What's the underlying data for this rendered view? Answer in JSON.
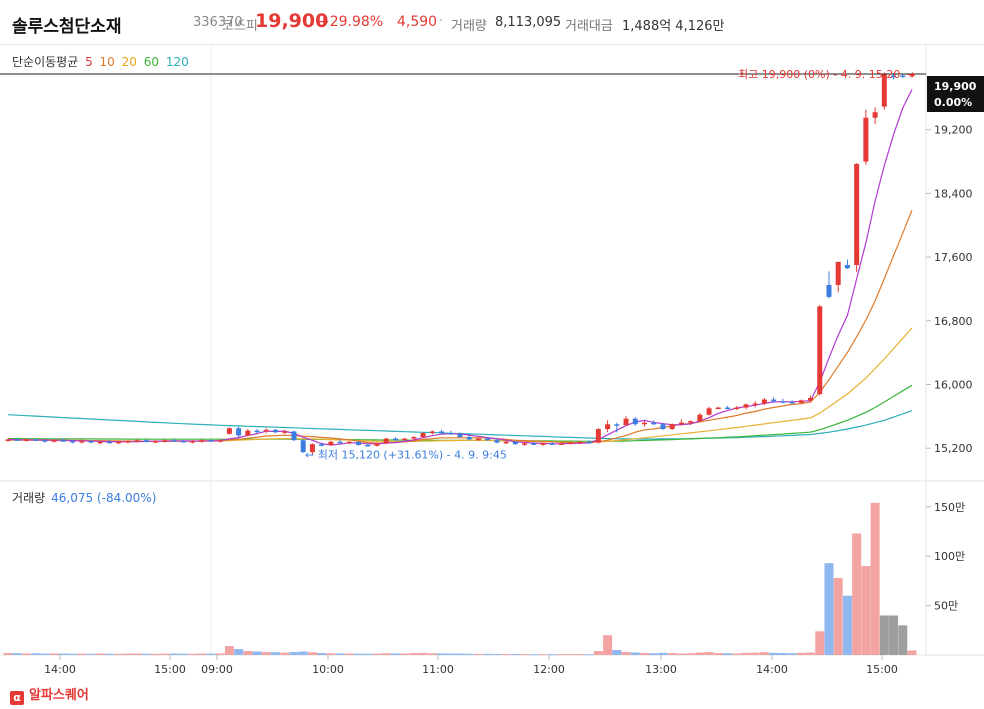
{
  "header": {
    "name": "솔루스첨단소재",
    "code": "336370",
    "market": "코스피",
    "price": "19,900",
    "change_pct": "+29.98%",
    "change": "4,590",
    "volume_label": "거래량",
    "volume": "8,113,095",
    "amount_label": "거래대금",
    "amount": "1,488억 4,126만"
  },
  "legend": {
    "title": "단순이동평균",
    "periods": [
      "5",
      "10",
      "20",
      "60",
      "120"
    ],
    "colors": [
      "#d63a3a",
      "#e07a2a",
      "#e8a917",
      "#3cb53c",
      "#2bb0b8"
    ]
  },
  "annotations": {
    "high": "최고 19,900 (0%) - 4. 9. 15:20",
    "low": "최저 15,120 (+31.61%) - 4. 9. 9:45",
    "last_price": "19,900",
    "last_pct": "0.00%"
  },
  "volume_panel": {
    "label": "거래량",
    "value": "46,075 (-84.00%)"
  },
  "footer": {
    "brand": "알파스퀘어",
    "logo": "α"
  },
  "chart_data": {
    "type": "candlestick",
    "price_ticks": [
      15200,
      16000,
      16800,
      17600,
      18400,
      19200
    ],
    "price_tick_labels": [
      "15,200",
      "16,000",
      "16,800",
      "17,600",
      "18,400",
      "19,200"
    ],
    "y_range": [
      14800,
      20050
    ],
    "time_labels": [
      "14:00",
      "15:00",
      "09:00",
      "10:00",
      "11:00",
      "12:00",
      "13:00",
      "14:00",
      "15:00"
    ],
    "volume_ticks": [
      "50만",
      "100만",
      "150만"
    ],
    "volume_tick_values": [
      500000,
      1000000,
      1500000
    ],
    "volume_range": [
      0,
      1650000
    ],
    "up_color": "#e53935",
    "down_color": "#3b7de0",
    "candles": [
      [
        15300,
        15320,
        15280,
        15310
      ],
      [
        15310,
        15330,
        15290,
        15300
      ],
      [
        15300,
        15320,
        15280,
        15310
      ],
      [
        15310,
        15320,
        15290,
        15300
      ],
      [
        15300,
        15310,
        15270,
        15290
      ],
      [
        15290,
        15310,
        15270,
        15300
      ],
      [
        15300,
        15320,
        15280,
        15290
      ],
      [
        15290,
        15300,
        15260,
        15280
      ],
      [
        15280,
        15300,
        15260,
        15290
      ],
      [
        15290,
        15300,
        15260,
        15270
      ],
      [
        15270,
        15290,
        15250,
        15280
      ],
      [
        15280,
        15300,
        15260,
        15270
      ],
      [
        15270,
        15290,
        15250,
        15280
      ],
      [
        15280,
        15300,
        15260,
        15290
      ],
      [
        15290,
        15310,
        15270,
        15300
      ],
      [
        15300,
        15310,
        15270,
        15280
      ],
      [
        15280,
        15300,
        15260,
        15290
      ],
      [
        15290,
        15310,
        15270,
        15300
      ],
      [
        15300,
        15320,
        15280,
        15290
      ],
      [
        15290,
        15300,
        15270,
        15280
      ],
      [
        15280,
        15300,
        15260,
        15290
      ],
      [
        15290,
        15310,
        15270,
        15300
      ],
      [
        15300,
        15310,
        15280,
        15290
      ],
      [
        15290,
        15310,
        15270,
        15300
      ],
      [
        15380,
        15460,
        15370,
        15450
      ],
      [
        15450,
        15470,
        15340,
        15360
      ],
      [
        15360,
        15440,
        15350,
        15420
      ],
      [
        15420,
        15440,
        15390,
        15410
      ],
      [
        15410,
        15450,
        15390,
        15430
      ],
      [
        15430,
        15440,
        15390,
        15400
      ],
      [
        15400,
        15430,
        15380,
        15410
      ],
      [
        15410,
        15420,
        15290,
        15300
      ],
      [
        15300,
        15310,
        15140,
        15150
      ],
      [
        15150,
        15260,
        15120,
        15250
      ],
      [
        15250,
        15270,
        15220,
        15240
      ],
      [
        15240,
        15290,
        15230,
        15280
      ],
      [
        15280,
        15310,
        15260,
        15270
      ],
      [
        15270,
        15290,
        15250,
        15280
      ],
      [
        15280,
        15290,
        15230,
        15240
      ],
      [
        15240,
        15260,
        15220,
        15230
      ],
      [
        15230,
        15270,
        15220,
        15260
      ],
      [
        15260,
        15330,
        15250,
        15320
      ],
      [
        15320,
        15340,
        15290,
        15310
      ],
      [
        15310,
        15330,
        15290,
        15320
      ],
      [
        15320,
        15350,
        15300,
        15340
      ],
      [
        15340,
        15400,
        15330,
        15390
      ],
      [
        15390,
        15420,
        15370,
        15410
      ],
      [
        15410,
        15430,
        15380,
        15390
      ],
      [
        15390,
        15420,
        15370,
        15380
      ],
      [
        15380,
        15400,
        15330,
        15340
      ],
      [
        15340,
        15360,
        15300,
        15310
      ],
      [
        15310,
        15330,
        15290,
        15320
      ],
      [
        15320,
        15340,
        15290,
        15300
      ],
      [
        15300,
        15320,
        15260,
        15270
      ],
      [
        15270,
        15290,
        15250,
        15280
      ],
      [
        15280,
        15290,
        15240,
        15250
      ],
      [
        15250,
        15270,
        15230,
        15260
      ],
      [
        15260,
        15280,
        15240,
        15250
      ],
      [
        15250,
        15270,
        15230,
        15260
      ],
      [
        15260,
        15280,
        15240,
        15250
      ],
      [
        15250,
        15270,
        15240,
        15260
      ],
      [
        15260,
        15280,
        15250,
        15270
      ],
      [
        15270,
        15290,
        15250,
        15280
      ],
      [
        15280,
        15300,
        15260,
        15270
      ],
      [
        15270,
        15450,
        15260,
        15440
      ],
      [
        15440,
        15550,
        15400,
        15500
      ],
      [
        15500,
        15520,
        15400,
        15490
      ],
      [
        15490,
        15600,
        15480,
        15570
      ],
      [
        15570,
        15590,
        15480,
        15500
      ],
      [
        15500,
        15540,
        15470,
        15520
      ],
      [
        15520,
        15550,
        15490,
        15500
      ],
      [
        15500,
        15520,
        15430,
        15440
      ],
      [
        15440,
        15510,
        15430,
        15500
      ],
      [
        15500,
        15560,
        15480,
        15520
      ],
      [
        15520,
        15550,
        15490,
        15540
      ],
      [
        15540,
        15640,
        15530,
        15620
      ],
      [
        15620,
        15720,
        15610,
        15700
      ],
      [
        15700,
        15720,
        15690,
        15710
      ],
      [
        15710,
        15730,
        15690,
        15700
      ],
      [
        15700,
        15730,
        15680,
        15710
      ],
      [
        15710,
        15760,
        15690,
        15750
      ],
      [
        15750,
        15790,
        15710,
        15760
      ],
      [
        15760,
        15830,
        15740,
        15810
      ],
      [
        15810,
        15840,
        15770,
        15790
      ],
      [
        15790,
        15820,
        15760,
        15780
      ],
      [
        15780,
        15800,
        15760,
        15770
      ],
      [
        15770,
        15810,
        15760,
        15800
      ],
      [
        15800,
        15860,
        15770,
        15830
      ],
      [
        15880,
        17000,
        15860,
        16980
      ],
      [
        17250,
        17420,
        17080,
        17100
      ],
      [
        17250,
        17530,
        17160,
        17540
      ],
      [
        17500,
        17570,
        17450,
        17460
      ],
      [
        17500,
        18780,
        17410,
        18770
      ],
      [
        18800,
        19450,
        18760,
        19350
      ],
      [
        19350,
        19480,
        19270,
        19420
      ],
      [
        19490,
        19900,
        19450,
        19900
      ],
      [
        19880,
        19910,
        19830,
        19860
      ],
      [
        19880,
        19900,
        19850,
        19870
      ],
      [
        19870,
        19900,
        19850,
        19900
      ]
    ],
    "volumes": [
      20000,
      18000,
      15000,
      17000,
      14000,
      16000,
      15000,
      13000,
      14000,
      12000,
      15000,
      13000,
      12000,
      14000,
      16000,
      13000,
      12000,
      14000,
      15000,
      13000,
      12000,
      15000,
      14000,
      16000,
      90000,
      60000,
      40000,
      35000,
      30000,
      28000,
      25000,
      30000,
      35000,
      28000,
      20000,
      18000,
      16000,
      15000,
      14000,
      13000,
      14000,
      18000,
      16000,
      15000,
      20000,
      22000,
      18000,
      16000,
      15000,
      14000,
      12000,
      11000,
      12000,
      10000,
      9000,
      10000,
      9000,
      8000,
      9000,
      8000,
      9000,
      10000,
      9000,
      8000,
      40000,
      200000,
      50000,
      30000,
      25000,
      20000,
      18000,
      22000,
      20000,
      15000,
      18000,
      25000,
      30000,
      20000,
      18000,
      16000,
      22000,
      25000,
      28000,
      22000,
      20000,
      18000,
      22000,
      25000,
      240000,
      930000,
      780000,
      600000,
      1230000,
      900000,
      1540000,
      400000,
      400000,
      300000,
      46075
    ],
    "ma_lines": {
      "ma5": [
        15310,
        15305,
        15303,
        15302,
        15302,
        15300,
        15300,
        15295,
        15292,
        15288,
        15285,
        15282,
        15280,
        15280,
        15282,
        15285,
        15287,
        15290,
        15292,
        15291,
        15290,
        15290,
        15293,
        15293,
        15318,
        15332,
        15360,
        15382,
        15414,
        15409,
        15414,
        15384,
        15338,
        15298,
        15256,
        15240,
        15250,
        15269,
        15263,
        15255,
        15253,
        15263,
        15271,
        15285,
        15302,
        15332,
        15357,
        15375,
        15382,
        15378,
        15364,
        15347,
        15332,
        15316,
        15300,
        15280,
        15272,
        15264,
        15258,
        15255,
        15256,
        15259,
        15263,
        15265,
        15307,
        15368,
        15426,
        15482,
        15527,
        15549,
        15524,
        15507,
        15495,
        15496,
        15505,
        15540,
        15582,
        15638,
        15672,
        15704,
        15722,
        15740,
        15762,
        15781,
        15782,
        15782,
        15788,
        15797,
        16030,
        16335,
        16617,
        16866,
        17330,
        17780,
        18303,
        18748,
        19142,
        19473,
        19704
      ],
      "ma10": [
        15310,
        15308,
        15306,
        15305,
        15304,
        15303,
        15301,
        15299,
        15297,
        15295,
        15293,
        15291,
        15290,
        15288,
        15287,
        15286,
        15285,
        15285,
        15286,
        15286,
        15287,
        15288,
        15290,
        15291,
        15304,
        15311,
        15325,
        15337,
        15353,
        15357,
        15363,
        15357,
        15350,
        15345,
        15335,
        15327,
        15316,
        15305,
        15288,
        15270,
        15263,
        15266,
        15270,
        15280,
        15290,
        15310,
        15320,
        15330,
        15330,
        15330,
        15330,
        15330,
        15330,
        15320,
        15310,
        15300,
        15295,
        15290,
        15285,
        15280,
        15275,
        15270,
        15268,
        15266,
        15280,
        15300,
        15330,
        15360,
        15400,
        15430,
        15440,
        15460,
        15480,
        15500,
        15510,
        15530,
        15550,
        15570,
        15590,
        15610,
        15640,
        15660,
        15690,
        15710,
        15730,
        15750,
        15760,
        15780,
        15900,
        16060,
        16230,
        16400,
        16600,
        16810,
        17050,
        17330,
        17620,
        17900,
        18190
      ],
      "ma20": [
        15300,
        15300,
        15299,
        15298,
        15297,
        15296,
        15295,
        15294,
        15293,
        15292,
        15291,
        15290,
        15290,
        15289,
        15289,
        15288,
        15288,
        15288,
        15288,
        15288,
        15288,
        15289,
        15290,
        15291,
        15295,
        15300,
        15305,
        15310,
        15315,
        15318,
        15320,
        15320,
        15318,
        15315,
        15312,
        15308,
        15304,
        15300,
        15295,
        15290,
        15287,
        15285,
        15284,
        15284,
        15285,
        15287,
        15290,
        15293,
        15295,
        15297,
        15298,
        15298,
        15297,
        15295,
        15292,
        15289,
        15286,
        15283,
        15280,
        15278,
        15276,
        15275,
        15274,
        15274,
        15278,
        15285,
        15295,
        15305,
        15318,
        15330,
        15342,
        15355,
        15368,
        15380,
        15392,
        15405,
        15418,
        15432,
        15446,
        15460,
        15475,
        15490,
        15505,
        15520,
        15535,
        15550,
        15565,
        15580,
        15640,
        15720,
        15800,
        15880,
        15980,
        16080,
        16200,
        16320,
        16450,
        16580,
        16710
      ],
      "ma60": [
        15320,
        15320,
        15319,
        15319,
        15318,
        15318,
        15317,
        15317,
        15316,
        15316,
        15315,
        15315,
        15315,
        15314,
        15314,
        15314,
        15313,
        15313,
        15313,
        15312,
        15312,
        15312,
        15312,
        15312,
        15312,
        15312,
        15312,
        15312,
        15312,
        15312,
        15312,
        15311,
        15311,
        15310,
        15310,
        15309,
        15308,
        15307,
        15306,
        15305,
        15304,
        15303,
        15302,
        15301,
        15300,
        15300,
        15299,
        15299,
        15299,
        15298,
        15298,
        15298,
        15297,
        15296,
        15295,
        15294,
        15293,
        15292,
        15291,
        15290,
        15289,
        15288,
        15287,
        15286,
        15286,
        15286,
        15288,
        15290,
        15293,
        15296,
        15300,
        15304,
        15308,
        15312,
        15316,
        15321,
        15326,
        15331,
        15337,
        15343,
        15349,
        15356,
        15363,
        15370,
        15377,
        15385,
        15393,
        15401,
        15430,
        15470,
        15510,
        15550,
        15600,
        15650,
        15710,
        15780,
        15850,
        15920,
        15990
      ],
      "ma120": [
        15620,
        15614,
        15608,
        15602,
        15596,
        15590,
        15584,
        15578,
        15572,
        15566,
        15560,
        15554,
        15548,
        15542,
        15536,
        15530,
        15524,
        15518,
        15512,
        15507,
        15502,
        15497,
        15492,
        15487,
        15483,
        15479,
        15475,
        15471,
        15467,
        15463,
        15459,
        15455,
        15451,
        15447,
        15443,
        15439,
        15435,
        15431,
        15427,
        15423,
        15419,
        15415,
        15411,
        15407,
        15403,
        15399,
        15395,
        15391,
        15387,
        15383,
        15379,
        15375,
        15371,
        15367,
        15363,
        15359,
        15355,
        15351,
        15347,
        15343,
        15339,
        15335,
        15331,
        15327,
        15323,
        15320,
        15318,
        15316,
        15315,
        15315,
        15315,
        15316,
        15317,
        15318,
        15320,
        15322,
        15324,
        15327,
        15330,
        15333,
        15337,
        15341,
        15345,
        15350,
        15355,
        15360,
        15366,
        15372,
        15385,
        15400,
        15420,
        15440,
        15465,
        15490,
        15520,
        15550,
        15590,
        15630,
        15670
      ]
    }
  }
}
